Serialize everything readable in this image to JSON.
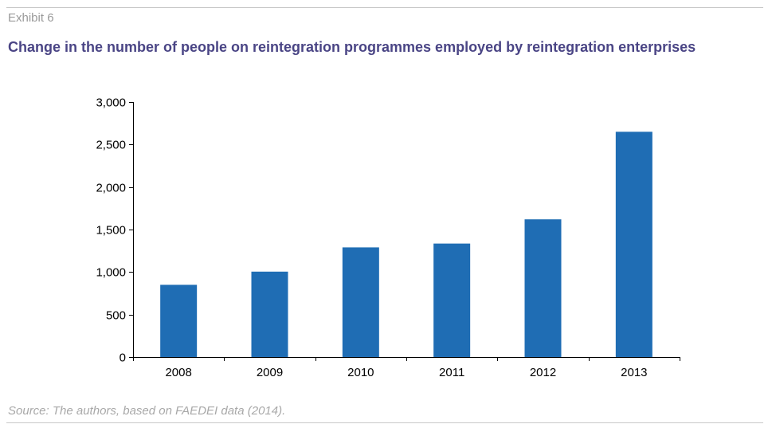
{
  "header": {
    "exhibit": "Exhibit 6",
    "title": "Change in the number of people on reintegration programmes employed by reintegration enterprises"
  },
  "footer": {
    "source": "Source: The authors, based on FAEDEI data (2014)."
  },
  "chart_data": {
    "type": "bar",
    "title": "Change in the number of people on reintegration programmes employed by reintegration enterprises",
    "xlabel": "",
    "ylabel": "",
    "categories": [
      "2008",
      "2009",
      "2010",
      "2011",
      "2012",
      "2013"
    ],
    "values": [
      850,
      1005,
      1290,
      1335,
      1620,
      2650
    ],
    "ylim": [
      0,
      3000
    ],
    "yticks": [
      0,
      500,
      1000,
      1500,
      2000,
      2500,
      3000
    ],
    "ytick_labels": [
      "0",
      "500",
      "1,000",
      "1,500",
      "2,000",
      "2,500",
      "3,000"
    ],
    "grid": false,
    "legend": "none",
    "bar_color": "#1f6db4",
    "axis_color": "#000000"
  }
}
